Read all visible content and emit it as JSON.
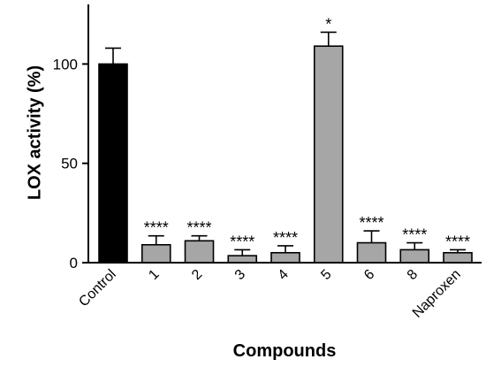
{
  "chart_data": {
    "type": "bar",
    "categories": [
      "Control",
      "1",
      "2",
      "3",
      "4",
      "5",
      "6",
      "8",
      "Naproxen"
    ],
    "values": [
      100,
      9,
      11,
      3.5,
      5,
      109,
      10,
      6.5,
      5
    ],
    "errors": [
      8,
      4.5,
      2.5,
      3,
      3.5,
      7,
      6,
      3.5,
      1.5
    ],
    "significance": [
      "",
      "****",
      "****",
      "****",
      "****",
      "*",
      "****",
      "****",
      "****"
    ],
    "bar_colors": [
      "#000000",
      "#a6a6a6",
      "#a6a6a6",
      "#a6a6a6",
      "#a6a6a6",
      "#a6a6a6",
      "#a6a6a6",
      "#a6a6a6",
      "#a6a6a6"
    ],
    "title": "",
    "xlabel": "Compounds",
    "ylabel": "LOX activity (%)",
    "yticks": [
      "0",
      "50",
      "100"
    ],
    "ylim": [
      0,
      130
    ],
    "grid": false,
    "legend": "none"
  }
}
